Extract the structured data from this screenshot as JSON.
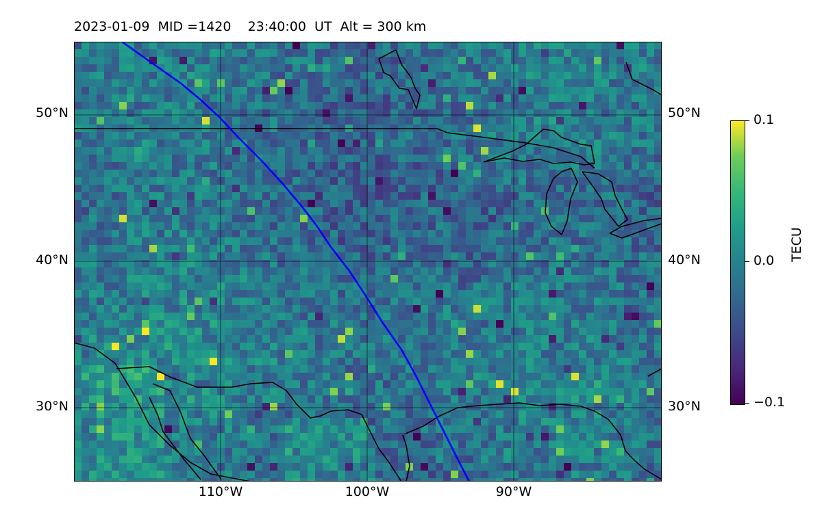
{
  "title": {
    "date": "2023-01-09",
    "mid_label": "MID =1420",
    "time_label": "23:40:00  UT",
    "alt_label": "Alt = 300 km"
  },
  "map": {
    "projection": "plate-carree",
    "lon_range": [
      -120,
      -80
    ],
    "lat_range": [
      25,
      55
    ],
    "lon_ticks": [
      "110°W",
      "100°W",
      "90°W"
    ],
    "lat_ticks": [
      "50°N",
      "40°N",
      "30°N"
    ],
    "gridlines": true,
    "field": "differential TEC",
    "track_color": "#0000ff",
    "coastline_color": "#000000"
  },
  "colorbar": {
    "label": "TECU",
    "ticks": [
      "0.1",
      "0.0",
      "−0.1"
    ],
    "range": [
      -0.1,
      0.1
    ],
    "colormap": "viridis"
  }
}
